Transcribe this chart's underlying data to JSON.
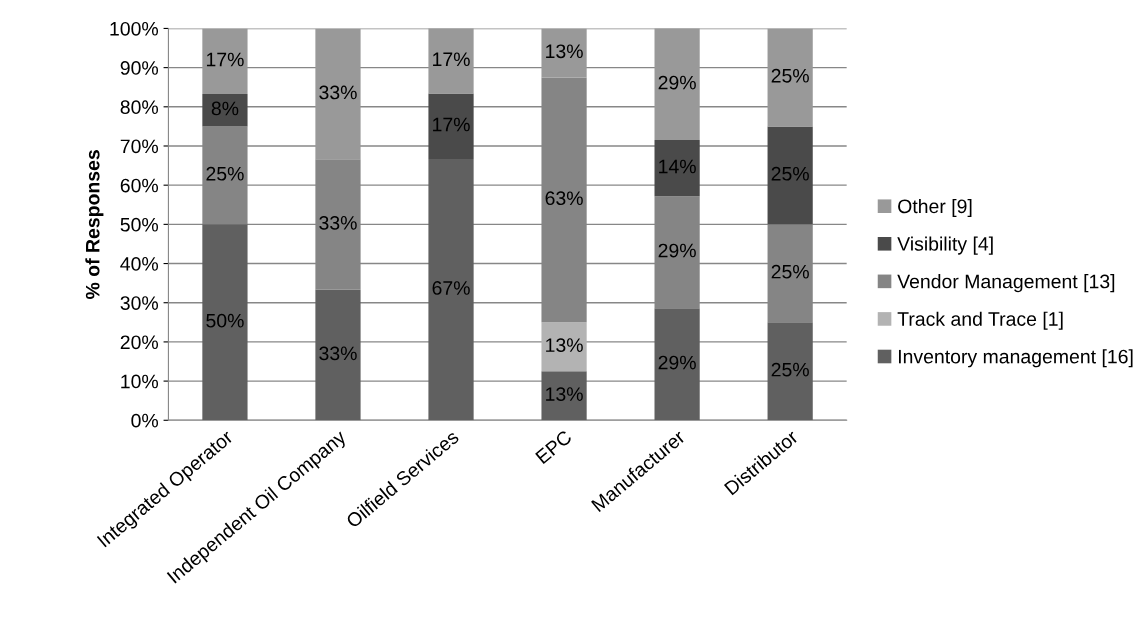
{
  "chart_data": {
    "type": "bar",
    "stacked": true,
    "ylabel": "% of Responses",
    "categories": [
      "Integrated Operator",
      "Independent Oil Company",
      "Oilfield Services",
      "EPC",
      "Manufacturer",
      "Distributor"
    ],
    "series": [
      {
        "name": "Inventory management [16]",
        "color": "#606060",
        "values": [
          50,
          33.3,
          66.7,
          12.5,
          28.6,
          25
        ],
        "value_labels": [
          "50%",
          "33%",
          "67%",
          "13%",
          "29%",
          "25%"
        ]
      },
      {
        "name": "Track and Trace [1]",
        "color": "#b3b3b3",
        "values": [
          0,
          0,
          0,
          12.5,
          0,
          0
        ],
        "value_labels": [
          null,
          null,
          null,
          "13%",
          null,
          null
        ]
      },
      {
        "name": "Vendor Management [13]",
        "color": "#858585",
        "values": [
          25,
          33.3,
          0,
          62.5,
          28.6,
          25
        ],
        "value_labels": [
          "25%",
          "33%",
          null,
          "63%",
          "29%",
          "25%"
        ]
      },
      {
        "name": "Visibility [4]",
        "color": "#4a4a4a",
        "values": [
          8.3,
          0,
          16.7,
          0,
          14.3,
          25
        ],
        "value_labels": [
          "8%",
          null,
          "17%",
          null,
          "14%",
          "25%"
        ]
      },
      {
        "name": "Other [9]",
        "color": "#999999",
        "values": [
          16.7,
          33.3,
          16.7,
          12.5,
          28.6,
          25
        ],
        "value_labels": [
          "17%",
          "33%",
          "17%",
          "13%",
          "29%",
          "25%"
        ]
      }
    ],
    "ylim": [
      0,
      100
    ],
    "yticks": [
      {
        "value": 0,
        "label": "0%"
      },
      {
        "value": 10,
        "label": "10%"
      },
      {
        "value": 20,
        "label": "20%"
      },
      {
        "value": 30,
        "label": "30%"
      },
      {
        "value": 40,
        "label": "40%"
      },
      {
        "value": 50,
        "label": "50%"
      },
      {
        "value": 60,
        "label": "60%"
      },
      {
        "value": 70,
        "label": "70%"
      },
      {
        "value": 80,
        "label": "80%"
      },
      {
        "value": 90,
        "label": "90%"
      },
      {
        "value": 100,
        "label": "100%"
      }
    ],
    "grid": "y",
    "legend": "right"
  }
}
